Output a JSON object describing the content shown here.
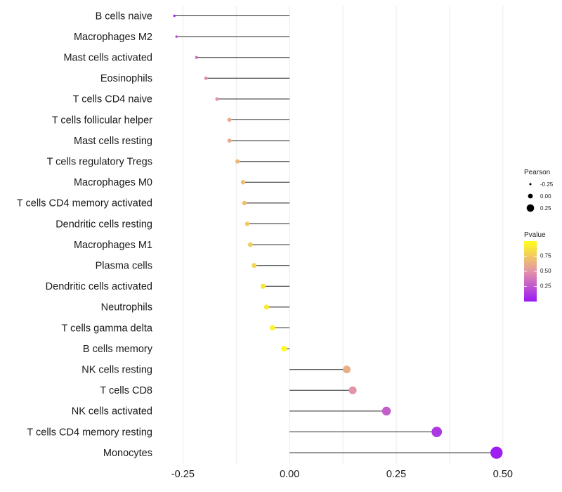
{
  "chart_data": {
    "type": "lollipop",
    "title": "",
    "xlabel": "",
    "ylabel": "",
    "xlim": [
      -0.3,
      0.52
    ],
    "x_ticks": [
      -0.25,
      0.0,
      0.25,
      0.5
    ],
    "x_tick_labels": [
      "-0.25",
      "0.00",
      "0.25",
      "0.50"
    ],
    "categories": [
      "B cells naive",
      "Macrophages M2",
      "Mast cells activated",
      "Eosinophils",
      "T cells CD4 naive",
      "T cells follicular helper",
      "Mast cells resting",
      "T cells regulatory  Tregs ",
      "Macrophages M0",
      "T cells CD4 memory activated",
      "Dendritic cells resting",
      "Macrophages M1",
      "Plasma cells",
      "Dendritic cells activated",
      "Neutrophils",
      "T cells gamma delta",
      "B cells memory",
      "NK cells resting",
      "T cells CD8",
      "NK cells activated",
      "T cells CD4 memory resting",
      "Monocytes"
    ],
    "pearson": [
      -0.27,
      -0.265,
      -0.218,
      -0.196,
      -0.17,
      -0.141,
      -0.141,
      -0.122,
      -0.109,
      -0.106,
      -0.099,
      -0.092,
      -0.083,
      -0.062,
      -0.054,
      -0.04,
      -0.013,
      0.134,
      0.148,
      0.227,
      0.345,
      0.485
    ],
    "pvalue": [
      0.08,
      0.2,
      0.35,
      0.45,
      0.5,
      0.6,
      0.6,
      0.66,
      0.7,
      0.71,
      0.75,
      0.77,
      0.8,
      0.87,
      0.9,
      0.95,
      0.99,
      0.62,
      0.5,
      0.28,
      0.12,
      0.02
    ],
    "legend_size": {
      "title": "Pearson",
      "values": [
        -0.25,
        0.0,
        0.25
      ],
      "labels": [
        "-0.25",
        "0.00",
        "0.25"
      ]
    },
    "legend_color": {
      "title": "Pvalue",
      "domain": [
        0.0,
        1.0
      ],
      "ticks": [
        0.25,
        0.5,
        0.75
      ],
      "labels": [
        "0.25",
        "0.50",
        "0.75"
      ],
      "low_color": "#9b19f5",
      "mid_color": "#e394a8",
      "high_color": "#ffff1a"
    },
    "segment_color": "#222222",
    "grid": true
  }
}
